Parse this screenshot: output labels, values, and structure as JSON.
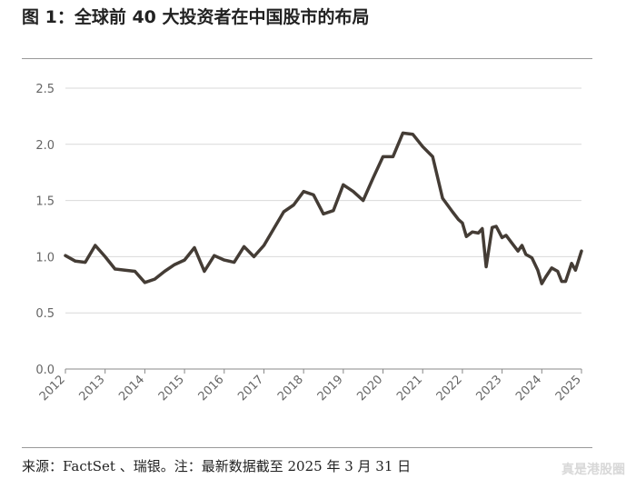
{
  "header": {
    "title": "图 1：全球前 40 大投资者在中国股市的布局"
  },
  "footer": {
    "source": "来源：FactSet 、瑞银。注：最新数据截至 2025 年 3 月 31 日",
    "watermark": "真是港股圈"
  },
  "colors": {
    "line": "#443c35",
    "grid": "#d9d9d9",
    "axis": "#888888"
  },
  "chart_data": {
    "type": "line",
    "title": "",
    "xlabel": "",
    "ylabel": "",
    "ylim": [
      0,
      2.5
    ],
    "yticks": [
      0.0,
      0.5,
      1.0,
      1.5,
      2.0,
      2.5
    ],
    "ytick_labels": [
      "0.0",
      "0.5",
      "1.0",
      "1.5",
      "2.0",
      "2.5"
    ],
    "xlim": [
      2012,
      2025
    ],
    "xticks": [
      2012,
      2013,
      2014,
      2015,
      2016,
      2017,
      2018,
      2019,
      2020,
      2021,
      2022,
      2023,
      2024,
      2025
    ],
    "xtick_labels": [
      "2012",
      "2013",
      "2014",
      "2015",
      "2016",
      "2017",
      "2018",
      "2019",
      "2020",
      "2021",
      "2022",
      "2023",
      "2024",
      "2025"
    ],
    "grid": true,
    "legend": "none",
    "series": [
      {
        "x": [
          2012.0,
          2012.25,
          2012.5,
          2012.75,
          2013.0,
          2013.25,
          2013.5,
          2013.75,
          2014.0,
          2014.25,
          2014.5,
          2014.75,
          2015.0,
          2015.25,
          2015.5,
          2015.75,
          2016.0,
          2016.25,
          2016.5,
          2016.75,
          2017.0,
          2017.25,
          2017.5,
          2017.75,
          2018.0,
          2018.25,
          2018.5,
          2018.75,
          2019.0,
          2019.25,
          2019.5,
          2019.75,
          2020.0,
          2020.25,
          2020.5,
          2020.75,
          2021.0,
          2021.25,
          2021.5,
          2021.75,
          2021.9,
          2022.0,
          2022.1,
          2022.25,
          2022.4,
          2022.5,
          2022.6,
          2022.75,
          2022.85,
          2023.0,
          2023.1,
          2023.25,
          2023.4,
          2023.5,
          2023.6,
          2023.75,
          2023.9,
          2024.0,
          2024.1,
          2024.25,
          2024.4,
          2024.5,
          2024.6,
          2024.75,
          2024.85,
          2025.0
        ],
        "y": [
          1.01,
          0.96,
          0.95,
          1.1,
          1.0,
          0.89,
          0.88,
          0.87,
          0.77,
          0.8,
          0.87,
          0.93,
          0.97,
          1.08,
          0.87,
          1.01,
          0.97,
          0.95,
          1.09,
          1.0,
          1.1,
          1.25,
          1.4,
          1.46,
          1.58,
          1.55,
          1.38,
          1.41,
          1.64,
          1.58,
          1.5,
          1.7,
          1.89,
          1.89,
          2.1,
          2.09,
          1.98,
          1.89,
          1.52,
          1.4,
          1.33,
          1.3,
          1.18,
          1.22,
          1.21,
          1.25,
          0.91,
          1.26,
          1.27,
          1.17,
          1.19,
          1.12,
          1.05,
          1.1,
          1.02,
          0.99,
          0.88,
          0.76,
          0.82,
          0.9,
          0.87,
          0.78,
          0.78,
          0.94,
          0.88,
          1.05
        ]
      }
    ]
  }
}
